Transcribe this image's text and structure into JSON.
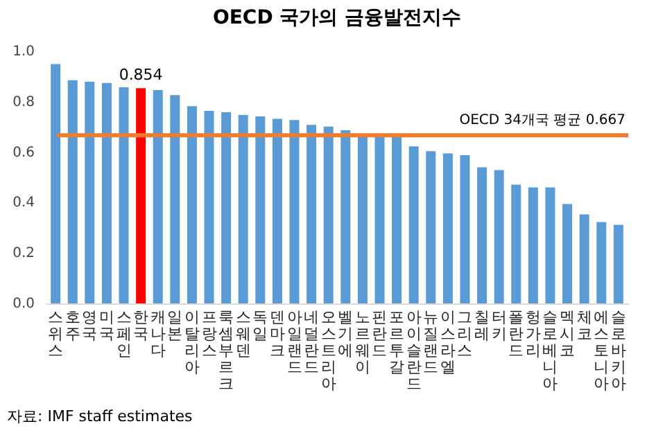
{
  "chart_data": {
    "type": "bar",
    "title": "OECD 국가의 금융발전지수",
    "categories": [
      "스위스",
      "호주",
      "영국",
      "미국",
      "스페인",
      "한국",
      "캐나다",
      "일본",
      "이탈리아",
      "프랑스",
      "룩셈부르크",
      "스웨덴",
      "독일",
      "덴마크",
      "아일랜드",
      "네덜란드",
      "오스트리아",
      "벨기에",
      "노르웨이",
      "핀란드",
      "포르투갈",
      "아이슬란드",
      "뉴질랜드",
      "이스라엘",
      "그리스",
      "칠레",
      "터키",
      "폴란드",
      "헝가리",
      "슬로베니아",
      "멕시코",
      "체코",
      "에스토니아",
      "슬로바키아"
    ],
    "values": [
      0.949,
      0.885,
      0.879,
      0.874,
      0.857,
      0.854,
      0.846,
      0.826,
      0.782,
      0.764,
      0.758,
      0.747,
      0.742,
      0.732,
      0.727,
      0.708,
      0.701,
      0.687,
      0.661,
      0.661,
      0.665,
      0.623,
      0.604,
      0.595,
      0.588,
      0.54,
      0.529,
      0.471,
      0.46,
      0.46,
      0.394,
      0.353,
      0.323,
      0.312
    ],
    "colors": [
      "#5b9bd5",
      "#5b9bd5",
      "#5b9bd5",
      "#5b9bd5",
      "#5b9bd5",
      "#ff0000",
      "#5b9bd5",
      "#5b9bd5",
      "#5b9bd5",
      "#5b9bd5",
      "#5b9bd5",
      "#5b9bd5",
      "#5b9bd5",
      "#5b9bd5",
      "#5b9bd5",
      "#5b9bd5",
      "#5b9bd5",
      "#5b9bd5",
      "#5b9bd5",
      "#5b9bd5",
      "#5b9bd5",
      "#5b9bd5",
      "#5b9bd5",
      "#5b9bd5",
      "#5b9bd5",
      "#5b9bd5",
      "#5b9bd5",
      "#5b9bd5",
      "#5b9bd5",
      "#5b9bd5",
      "#5b9bd5",
      "#5b9bd5",
      "#5b9bd5",
      "#5b9bd5"
    ],
    "value_labels": [
      null,
      null,
      null,
      null,
      null,
      "0.854",
      null,
      null,
      null,
      null,
      null,
      null,
      null,
      null,
      null,
      null,
      null,
      null,
      null,
      null,
      null,
      null,
      null,
      null,
      null,
      null,
      null,
      null,
      null,
      null,
      null,
      null,
      null,
      null
    ],
    "ylim": [
      0,
      1.0
    ],
    "yticks": [
      {
        "value": 0,
        "label": "0.0"
      },
      {
        "value": 0.2,
        "label": "0.2"
      },
      {
        "value": 0.4,
        "label": "0.4"
      },
      {
        "value": 0.6,
        "label": "0.6"
      },
      {
        "value": 0.8,
        "label": "0.8"
      },
      {
        "value": 1.0,
        "label": "1.0"
      }
    ],
    "ref_lines": [
      {
        "axis": "y",
        "value": 0.667,
        "label": "OECD 34개국 평균 0.667",
        "color": "#ed7d31",
        "line_style": "solid"
      }
    ],
    "grid": false,
    "annotations": [
      "자료: IMF staff estimates"
    ]
  }
}
